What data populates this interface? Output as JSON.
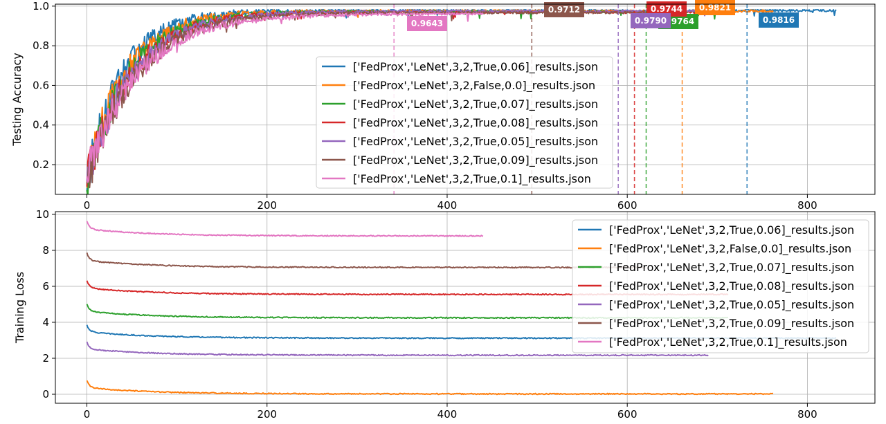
{
  "chart_data": [
    {
      "type": "line",
      "title": "",
      "xlabel": "",
      "ylabel": "Testing Accuracy",
      "xlim": [
        -35,
        875
      ],
      "ylim": [
        0.05,
        1.01
      ],
      "xticks": [
        0,
        200,
        400,
        600,
        800
      ],
      "yticks": [
        0.2,
        0.4,
        0.6,
        0.8,
        1.0
      ],
      "xtick_labels": [
        "0",
        "200",
        "400",
        "600",
        "800"
      ],
      "ytick_labels": [
        "0.2",
        "0.4",
        "0.6",
        "0.8",
        "1.0"
      ],
      "grid": true,
      "legend_position": "lower-center",
      "series": [
        {
          "name": "['FedProx','LeNet',3,2,True,0.06]_results.json",
          "color": "#1f77b4",
          "rounds": 832,
          "start": 0.12,
          "plateau": 0.978,
          "best": 0.9816,
          "best_round": 733
        },
        {
          "name": "['FedProx','LeNet',3,2,False,0.0]_results.json",
          "color": "#ff7f0e",
          "rounds": 762,
          "start": 0.13,
          "plateau": 0.975,
          "best": 0.9821,
          "best_round": 661
        },
        {
          "name": "['FedProx','LeNet',3,2,True,0.07]_results.json",
          "color": "#2ca02c",
          "rounds": 712,
          "start": 0.11,
          "plateau": 0.972,
          "best": 0.9764,
          "best_round": 621
        },
        {
          "name": "['FedProx','LeNet',3,2,True,0.08]_results.json",
          "color": "#d62728",
          "rounds": 712,
          "start": 0.12,
          "plateau": 0.97,
          "best": 0.9744,
          "best_round": 608
        },
        {
          "name": "['FedProx','LeNet',3,2,True,0.05]_results.json",
          "color": "#9467bd",
          "rounds": 690,
          "start": 0.14,
          "plateau": 0.975,
          "best": 0.979,
          "best_round": 590
        },
        {
          "name": "['FedProx','LeNet',3,2,True,0.09]_results.json",
          "color": "#8c564b",
          "rounds": 620,
          "start": 0.12,
          "plateau": 0.968,
          "best": 0.9712,
          "best_round": 494
        },
        {
          "name": "['FedProx','LeNet',3,2,True,0.1]_results.json",
          "color": "#e377c2",
          "rounds": 440,
          "start": 0.15,
          "plateau": 0.962,
          "best": 0.9643,
          "best_round": 341
        }
      ],
      "annotations": [
        {
          "text": "0.9816",
          "x": 733,
          "color": "#1f77b4"
        },
        {
          "text": "0.9821",
          "x": 661,
          "color": "#ff7f0e"
        },
        {
          "text": "0.9764",
          "x": 621,
          "color": "#2ca02c"
        },
        {
          "text": "0.9744",
          "x": 608,
          "color": "#d62728"
        },
        {
          "text": "0.9790",
          "x": 590,
          "color": "#9467bd"
        },
        {
          "text": "0.9712",
          "x": 494,
          "color": "#8c564b"
        },
        {
          "text": "0.9643",
          "x": 341,
          "color": "#e377c2"
        }
      ]
    },
    {
      "type": "line",
      "title": "",
      "xlabel": "",
      "ylabel": "Training Loss",
      "xlim": [
        -35,
        875
      ],
      "ylim": [
        -0.5,
        10.15
      ],
      "xticks": [
        0,
        200,
        400,
        600,
        800
      ],
      "yticks": [
        0,
        2,
        4,
        6,
        8,
        10
      ],
      "xtick_labels": [
        "0",
        "200",
        "400",
        "600",
        "800"
      ],
      "ytick_labels": [
        "0",
        "2",
        "4",
        "6",
        "8",
        "10"
      ],
      "grid": true,
      "legend_position": "upper-right",
      "series": [
        {
          "name": "['FedProx','LeNet',3,2,True,0.06]_results.json",
          "color": "#1f77b4",
          "rounds": 832,
          "start": 3.85,
          "end": 3.12
        },
        {
          "name": "['FedProx','LeNet',3,2,False,0.0]_results.json",
          "color": "#ff7f0e",
          "rounds": 762,
          "start": 0.75,
          "end": 0.02
        },
        {
          "name": "['FedProx','LeNet',3,2,True,0.07]_results.json",
          "color": "#2ca02c",
          "rounds": 712,
          "start": 5.0,
          "end": 4.25
        },
        {
          "name": "['FedProx','LeNet',3,2,True,0.08]_results.json",
          "color": "#d62728",
          "rounds": 712,
          "start": 6.3,
          "end": 5.55
        },
        {
          "name": "['FedProx','LeNet',3,2,True,0.05]_results.json",
          "color": "#9467bd",
          "rounds": 690,
          "start": 2.9,
          "end": 2.17
        },
        {
          "name": "['FedProx','LeNet',3,2,True,0.09]_results.json",
          "color": "#8c564b",
          "rounds": 620,
          "start": 7.85,
          "end": 7.05
        },
        {
          "name": "['FedProx','LeNet',3,2,True,0.1]_results.json",
          "color": "#e377c2",
          "rounds": 440,
          "start": 9.6,
          "end": 8.8
        }
      ]
    }
  ]
}
